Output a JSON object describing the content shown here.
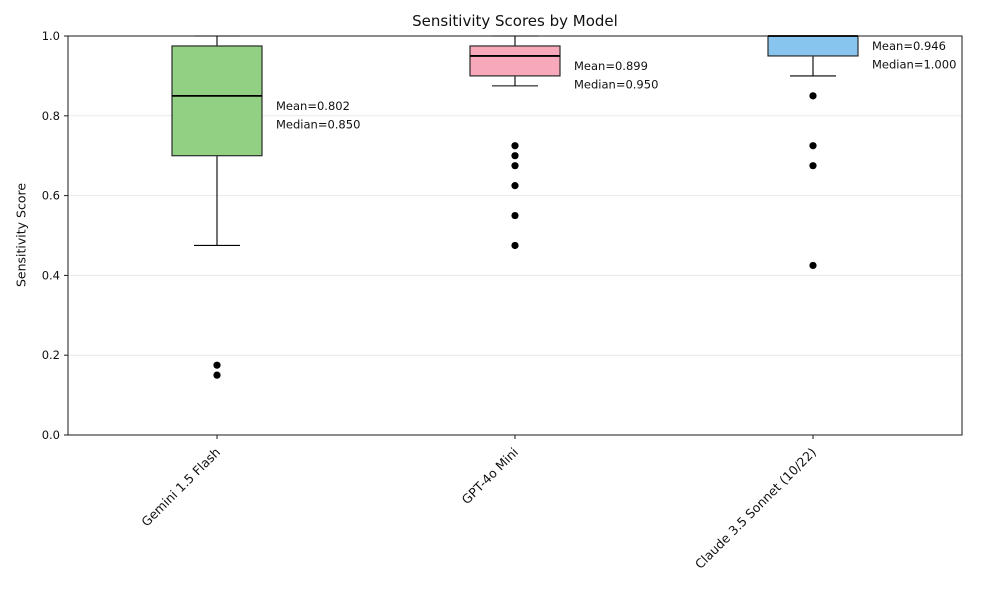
{
  "chart_data": {
    "type": "box",
    "title": "Sensitivity Scores by Model",
    "xlabel": "",
    "ylabel": "Sensitivity Score",
    "ylim": [
      0.0,
      1.0
    ],
    "yticks": [
      0.0,
      0.2,
      0.4,
      0.6,
      0.8,
      1.0
    ],
    "ytick_labels": [
      "0.0",
      "0.2",
      "0.4",
      "0.6",
      "0.8",
      "1.0"
    ],
    "grid": {
      "horizontal": true,
      "color": "#e9e9e9"
    },
    "legend": "none",
    "categories": [
      "Gemini 1.5 Flash",
      "GPT-4o Mini",
      "Claude 3.5 Sonnet (10/22)"
    ],
    "boxes": [
      {
        "category": "Gemini 1.5 Flash",
        "fill": "#92d083",
        "whisker_low": 0.475,
        "q1": 0.7,
        "median": 0.85,
        "q3": 0.975,
        "whisker_high": 1.0,
        "outliers": [
          0.175,
          0.15
        ],
        "mean": 0.802,
        "annotation_lines": [
          "Mean=0.802",
          "Median=0.850"
        ]
      },
      {
        "category": "GPT-4o Mini",
        "fill": "#f8a8bb",
        "whisker_low": 0.875,
        "q1": 0.9,
        "median": 0.95,
        "q3": 0.975,
        "whisker_high": 1.0,
        "outliers": [
          0.725,
          0.7,
          0.675,
          0.625,
          0.55,
          0.475
        ],
        "mean": 0.899,
        "annotation_lines": [
          "Mean=0.899",
          "Median=0.950"
        ]
      },
      {
        "category": "Claude 3.5 Sonnet (10/22)",
        "fill": "#87c4ee",
        "whisker_low": 0.9,
        "q1": 0.95,
        "median": 1.0,
        "q3": 1.0,
        "whisker_high": 1.0,
        "outliers": [
          0.85,
          0.725,
          0.675,
          0.425
        ],
        "mean": 0.946,
        "annotation_lines": [
          "Mean=0.946",
          "Median=1.000"
        ]
      }
    ],
    "style": {
      "box_edge": "#2b2b2b",
      "median_color": "#000000",
      "whisker_color": "#000000",
      "flier_color": "#000000",
      "axis_color": "#1a1a1a",
      "gridline_color": "#e9e9e9",
      "background": "#ffffff"
    }
  }
}
